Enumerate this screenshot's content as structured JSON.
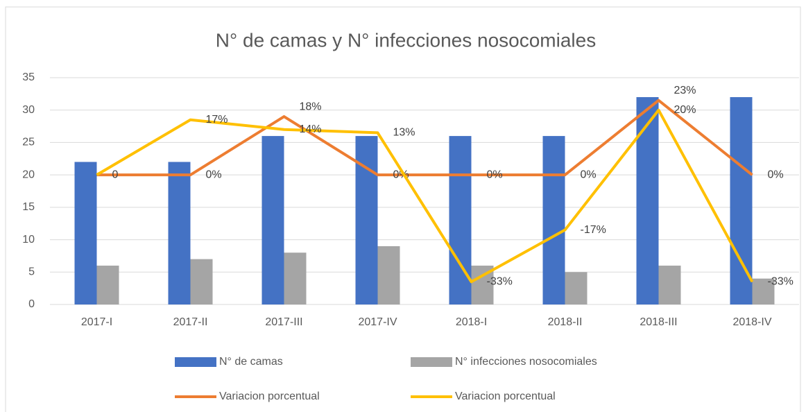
{
  "chart_data": {
    "type": "bar_line",
    "title": "N° de camas y N° infecciones nosocomiales",
    "categories": [
      "2017-I",
      "2017-II",
      "2017-III",
      "2017-IV",
      "2018-I",
      "2018-II",
      "2018-III",
      "2018-IV"
    ],
    "series": [
      {
        "name": "N°  de camas",
        "type": "bar",
        "color": "#4472c4",
        "values": [
          22,
          22,
          26,
          26,
          26,
          26,
          32,
          32
        ]
      },
      {
        "name": "N° infecciones nosocomiales",
        "type": "bar",
        "color": "#a5a5a5",
        "values": [
          6,
          7,
          8,
          9,
          6,
          5,
          6,
          4
        ]
      },
      {
        "name": "Variacion porcentual",
        "type": "line",
        "axis": "y2",
        "color": "#ed7d31",
        "values": [
          0,
          0,
          18,
          0,
          0,
          0,
          23,
          0
        ],
        "value_labels": [
          "0",
          "0%",
          "18%",
          "0%",
          "0%",
          "0%",
          "23%",
          "0%"
        ]
      },
      {
        "name": "Variacion porcentual",
        "type": "line",
        "axis": "y2",
        "color": "#ffc000",
        "values": [
          0,
          17,
          14,
          13,
          -33,
          -17,
          20,
          -33
        ],
        "value_labels": [
          null,
          "17%",
          "14%",
          "13%",
          "-33%",
          "-17%",
          "20%",
          "-33%"
        ]
      }
    ],
    "ylim": [
      0,
      35
    ],
    "yticks": [
      0,
      5,
      10,
      15,
      20,
      25,
      30,
      35
    ],
    "y2lim": [
      -40,
      30
    ],
    "grid": true,
    "legend": "bottom"
  }
}
